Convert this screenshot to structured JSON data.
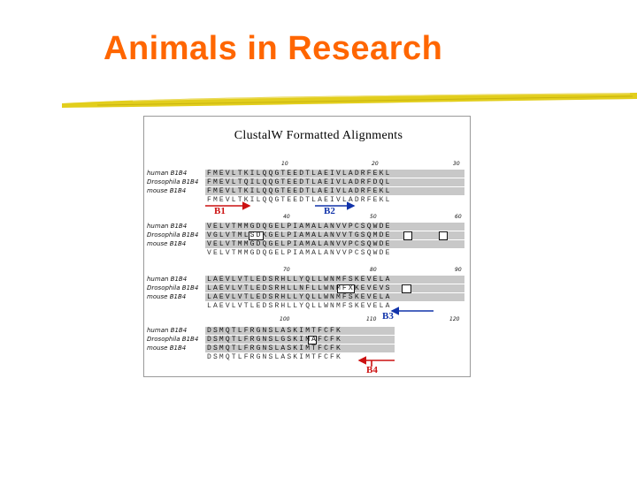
{
  "slide": {
    "title": "Animals in Research",
    "title_color": "#ff6600",
    "underline_color": "#e2ce1c"
  },
  "figure": {
    "title": "ClustalW Formatted Alignments",
    "blocks": [
      {
        "numbers": [
          "10",
          "20",
          "30"
        ],
        "rows": [
          {
            "species": "human B1B4",
            "seq": "FMEVLTKILQQGTEEDTLAEIVLADRFEKL"
          },
          {
            "species": "Drosophila B1B4",
            "seq": "FMEVLTQILQQGTEEDTLAEIVLADRFDQL"
          },
          {
            "species": "mouse B1B4",
            "seq": "FMEVLTKILQQGTEEDTLAEIVLADRFEKL"
          }
        ],
        "consensus": "FMEVLTKILQQGTEEDTLAEIVLADRFEKL"
      },
      {
        "numbers": [
          "40",
          "50",
          "60"
        ],
        "rows": [
          {
            "species": "human B1B4",
            "seq": "VELVTMMGDQGELPIAMALANVVPCSQWDE"
          },
          {
            "species": "Drosophila B1B4",
            "seq": "VGLVTMLSDKGELPIAMALANVVTGSQMDE"
          },
          {
            "species": "mouse B1B4",
            "seq": "VELVTMMGDQGELPIAMALANVVPCSQWDE"
          }
        ],
        "consensus": "VELVTMMGDQGELPIAMALANVVPCSQWDE"
      },
      {
        "numbers": [
          "70",
          "80",
          "90"
        ],
        "rows": [
          {
            "species": "human B1B4",
            "seq": "LAEVLVTLEDSRHLLYQLLWNMFSKEVELA"
          },
          {
            "species": "Drosophila B1B4",
            "seq": "LAEVLVTLEDSRHLLNFLLWNMFXKEVEVS"
          },
          {
            "species": "mouse B1B4",
            "seq": "LAEVLVTLEDSRHLLYQLLWNMFSKEVELA"
          }
        ],
        "consensus": "LAEVLVTLEDSRHLLYQLLWNMFSKEVELA"
      },
      {
        "numbers": [
          "100",
          "110",
          "120"
        ],
        "rows": [
          {
            "species": "human B1B4",
            "seq": "DSMQTLFRGNSLASKIMTFCFK"
          },
          {
            "species": "Drosophila B1B4",
            "seq": "DSMQTLFRGNSLGSKIMAFCFK"
          },
          {
            "species": "mouse B1B4",
            "seq": "DSMQTLFRGNSLASKIMTFCFK"
          }
        ],
        "consensus": "DSMQTLFRGNSLASKIMTFCFK"
      }
    ],
    "labels": {
      "b1": "B1",
      "b2": "B2",
      "b3": "B3",
      "b4": "B4"
    },
    "arrow_colors": {
      "red": "#cc1111",
      "blue": "#1133aa"
    }
  }
}
